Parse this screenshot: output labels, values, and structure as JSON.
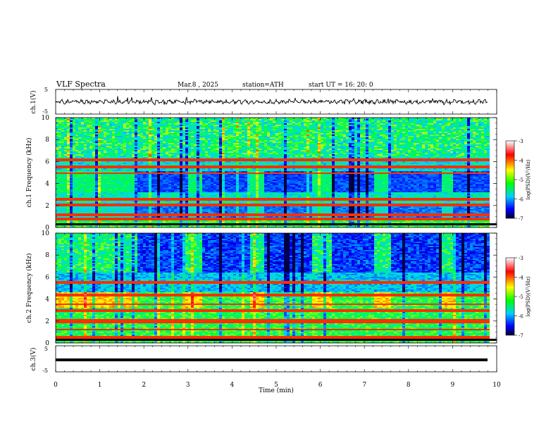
{
  "header": {
    "title": "VLF  Spectra",
    "date": "Mar.8  , 2025",
    "station": "station=ATH",
    "start": "start  UT  =   16: 20: 0"
  },
  "chart_data": [
    {
      "type": "line",
      "panel": "ch1-waveform",
      "ylabel": "ch.1(V)",
      "ylim": [
        -5,
        5
      ],
      "yticks": [
        "5",
        "-5"
      ],
      "xlim": [
        0,
        10
      ],
      "baseline": 0
    },
    {
      "type": "heatmap",
      "panel": "ch1-spectrogram",
      "ylabel": "ch.1 Frequency  (kHz)",
      "ylim": [
        0,
        10
      ],
      "yticks": [
        "0",
        "2",
        "4",
        "6",
        "8",
        "10"
      ],
      "xlim": [
        0,
        10
      ],
      "transmitter_on_intervals_min": [
        [
          0,
          1.8
        ],
        [
          2.9,
          3.3
        ],
        [
          4.4,
          4.7
        ],
        [
          5.8,
          6.2
        ],
        [
          7.2,
          7.6
        ],
        [
          8.7,
          9.0
        ]
      ],
      "colorbar": {
        "label": "log(PSD)(V²/Hz)",
        "range": [
          -7,
          -3
        ],
        "ticks": [
          "-3",
          "-4",
          "-5",
          "-6",
          "-7"
        ]
      }
    },
    {
      "type": "heatmap",
      "panel": "ch2-spectrogram",
      "ylabel": "ch.2 Frequency  (kHz)",
      "ylim": [
        0,
        10
      ],
      "yticks": [
        "0",
        "2",
        "4",
        "6",
        "8",
        "10"
      ],
      "xlim": [
        0,
        10
      ],
      "colorbar": {
        "label": "log(PSD)(V²/Hz)",
        "range": [
          -7,
          -3
        ],
        "ticks": [
          "-3",
          "-4",
          "-5",
          "-6",
          "-7"
        ]
      }
    },
    {
      "type": "line",
      "panel": "ch3-waveform",
      "ylabel": "ch.3(V)",
      "ylim": [
        -5,
        5
      ],
      "yticks": [
        "5",
        "-5"
      ],
      "xlim": [
        0,
        10
      ],
      "baseline": 0,
      "xlabel": "Time  (min)",
      "xticks": [
        "0",
        "1",
        "2",
        "3",
        "4",
        "5",
        "6",
        "7",
        "8",
        "9",
        "10"
      ]
    }
  ]
}
